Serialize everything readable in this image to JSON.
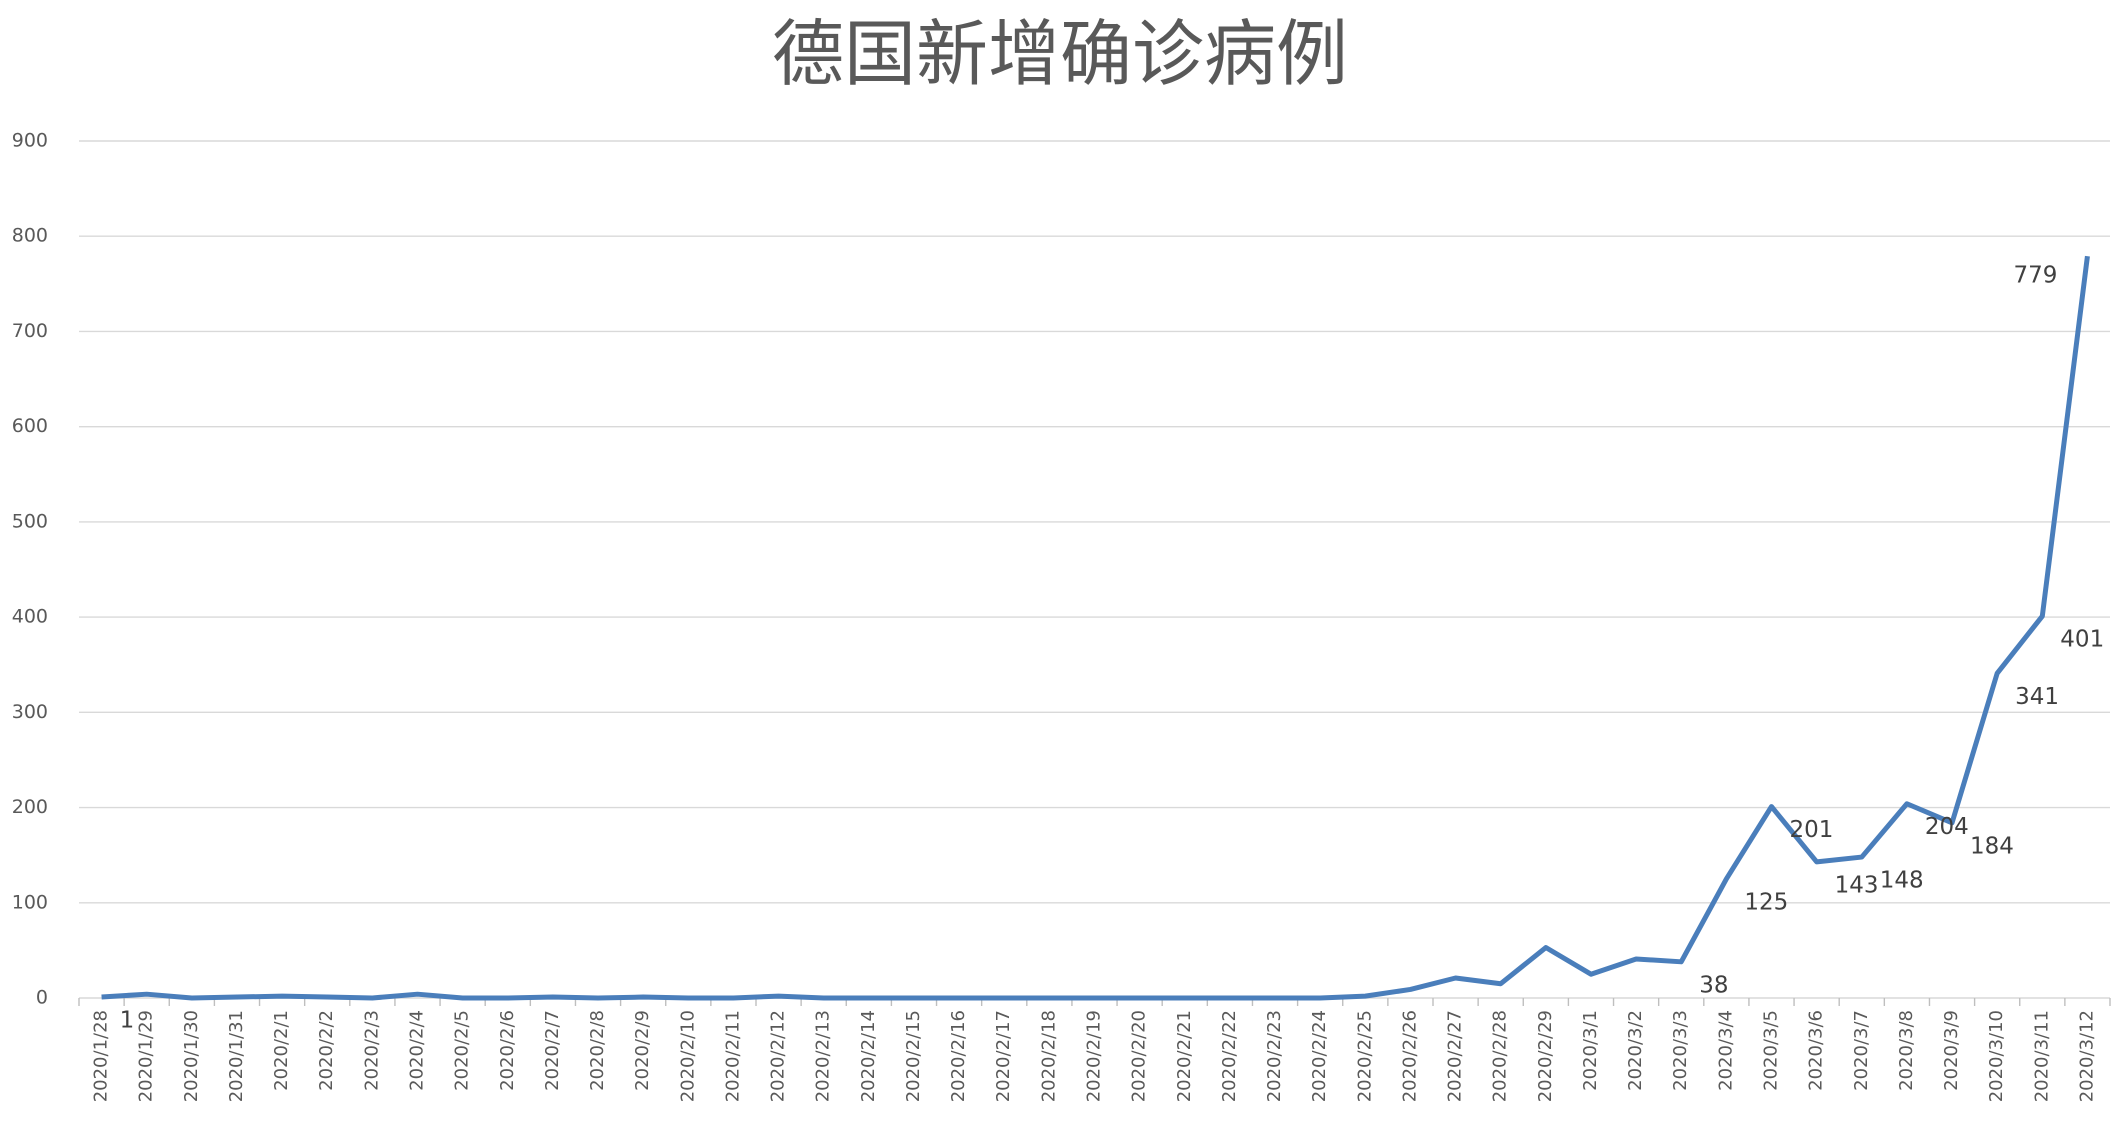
{
  "chart_data": {
    "type": "line",
    "title": "德国新增确诊病例",
    "categories": [
      "2020/1/28",
      "2020/1/29",
      "2020/1/30",
      "2020/1/31",
      "2020/2/1",
      "2020/2/2",
      "2020/2/3",
      "2020/2/4",
      "2020/2/5",
      "2020/2/6",
      "2020/2/7",
      "2020/2/8",
      "2020/2/9",
      "2020/2/10",
      "2020/2/11",
      "2020/2/12",
      "2020/2/13",
      "2020/2/14",
      "2020/2/15",
      "2020/2/16",
      "2020/2/17",
      "2020/2/18",
      "2020/2/19",
      "2020/2/20",
      "2020/2/21",
      "2020/2/22",
      "2020/2/23",
      "2020/2/24",
      "2020/2/25",
      "2020/2/26",
      "2020/2/27",
      "2020/2/28",
      "2020/2/29",
      "2020/3/1",
      "2020/3/2",
      "2020/3/3",
      "2020/3/4",
      "2020/3/5",
      "2020/3/6",
      "2020/3/7",
      "2020/3/8",
      "2020/3/9",
      "2020/3/10",
      "2020/3/11",
      "2020/3/12"
    ],
    "values": [
      1,
      4,
      0,
      1,
      2,
      1,
      0,
      4,
      0,
      0,
      1,
      0,
      1,
      0,
      0,
      2,
      0,
      0,
      0,
      0,
      0,
      0,
      0,
      0,
      0,
      0,
      0,
      0,
      2,
      9,
      21,
      15,
      53,
      25,
      41,
      38,
      125,
      201,
      143,
      148,
      204,
      184,
      341,
      401,
      779
    ],
    "value_labels": [
      1,
      null,
      null,
      null,
      null,
      null,
      null,
      null,
      null,
      null,
      null,
      null,
      null,
      null,
      null,
      null,
      null,
      null,
      null,
      null,
      null,
      null,
      null,
      null,
      null,
      null,
      null,
      null,
      null,
      null,
      null,
      null,
      null,
      null,
      null,
      38,
      125,
      201,
      143,
      148,
      204,
      184,
      341,
      401,
      779
    ],
    "color": "#4a7ebb",
    "ylim": [
      0,
      900
    ],
    "yticks": [
      0,
      100,
      200,
      300,
      400,
      500,
      600,
      700,
      800,
      900
    ],
    "grid": true
  }
}
